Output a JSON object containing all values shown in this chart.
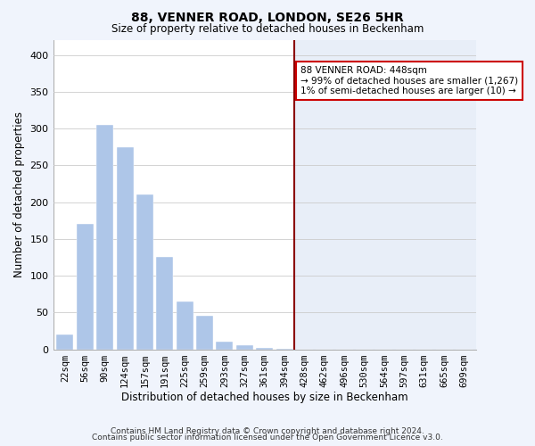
{
  "title": "88, VENNER ROAD, LONDON, SE26 5HR",
  "subtitle": "Size of property relative to detached houses in Beckenham",
  "xlabel": "Distribution of detached houses by size in Beckenham",
  "ylabel": "Number of detached properties",
  "bin_labels": [
    "22sqm",
    "56sqm",
    "90sqm",
    "124sqm",
    "157sqm",
    "191sqm",
    "225sqm",
    "259sqm",
    "293sqm",
    "327sqm",
    "361sqm",
    "394sqm",
    "428sqm",
    "462sqm",
    "496sqm",
    "530sqm",
    "564sqm",
    "597sqm",
    "631sqm",
    "665sqm",
    "699sqm"
  ],
  "bar_heights": [
    20,
    170,
    305,
    275,
    210,
    125,
    65,
    45,
    10,
    5,
    2,
    1,
    0,
    0,
    0,
    0,
    0,
    0,
    0,
    0,
    0
  ],
  "highlight_bin_index": 12,
  "bar_color_left": "#aec6e8",
  "bar_color_right": "#dce8f8",
  "highlight_line_color": "#8b0000",
  "annotation_line1": "88 VENNER ROAD: 448sqm",
  "annotation_line2": "→ 99% of detached houses are smaller (1,267)",
  "annotation_line3": "1% of semi-detached houses are larger (10) →",
  "annotation_box_color": "#ffffff",
  "annotation_box_edge": "#cc0000",
  "footer_line1": "Contains HM Land Registry data © Crown copyright and database right 2024.",
  "footer_line2": "Contains public sector information licensed under the Open Government Licence v3.0.",
  "ylim": [
    0,
    420
  ],
  "yticks": [
    0,
    50,
    100,
    150,
    200,
    250,
    300,
    350,
    400
  ],
  "fig_bg_color": "#f0f4fc",
  "plot_bg_left": "#ffffff",
  "plot_bg_right": "#e8eef8"
}
